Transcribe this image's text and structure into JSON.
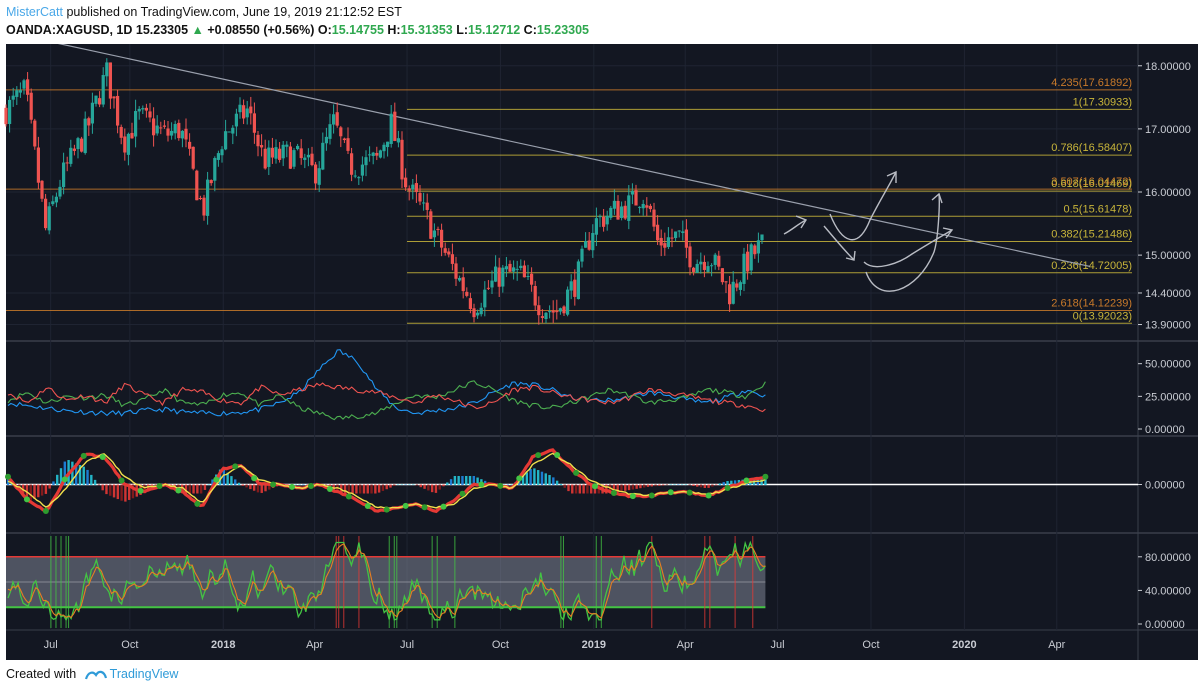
{
  "header": {
    "user": "MisterCatt",
    "published": "published on TradingView.com, June 19, 2019 21:12:52 EST",
    "symbol": "OANDA:XAGUSD, 1D",
    "last": "15.23305",
    "change_arrow": "▲",
    "change": "+0.08550 (+0.56%)",
    "o_label": "O:",
    "o": "15.14755",
    "h_label": "H:",
    "h": "15.31353",
    "l_label": "L:",
    "l": "15.12712",
    "c_label": "C:",
    "c": "15.23305"
  },
  "footer": {
    "created": "Created with",
    "brand": "TradingView",
    "logo_icon": "tradingview-logo-icon"
  },
  "colors": {
    "background": "#131722",
    "candle_up": "#26a69a",
    "candle_down": "#ef5350",
    "fib_line": "#b8a21e",
    "fib_label_olive": "#c8b53a",
    "fib_label_orange": "#c97a2a",
    "trendline": "#9aa0ad",
    "dmi_plus": "#4caf50",
    "dmi_minus": "#ef5350",
    "adx": "#2196f3"
  },
  "chart_data": [
    {
      "type": "candlestick",
      "panel": "price",
      "y_axis_ticks": [
        "18.00000",
        "17.00000",
        "16.00000",
        "15.00000",
        "14.40000",
        "13.90000"
      ],
      "x_axis_ticks": [
        "Jul",
        "Oct",
        "2018",
        "Apr",
        "Jul",
        "Oct",
        "2019",
        "Apr",
        "Jul",
        "Oct",
        "2020",
        "Apr"
      ],
      "fib_levels": [
        {
          "label": "4.235(17.61892)",
          "value": 17.61892,
          "color": "orange"
        },
        {
          "label": "1(17.30933)",
          "value": 17.30933,
          "color": "olive"
        },
        {
          "label": "0.786(16.58407)",
          "value": 16.58407,
          "color": "olive"
        },
        {
          "label": "3.507(16.04472)",
          "value": 16.04472,
          "color": "orange"
        },
        {
          "label": "0.618(16.01469)",
          "value": 16.01469,
          "color": "olive"
        },
        {
          "label": "0.5(15.61478)",
          "value": 15.61478,
          "color": "olive"
        },
        {
          "label": "0.382(15.21486)",
          "value": 15.21486,
          "color": "olive"
        },
        {
          "label": "0.236(14.72005)",
          "value": 14.72005,
          "color": "olive"
        },
        {
          "label": "2.618(14.12239)",
          "value": 14.12239,
          "color": "orange"
        },
        {
          "label": "0(13.92023)",
          "value": 13.92023,
          "color": "olive"
        }
      ],
      "price_path": [
        [
          "2017-06",
          17.3
        ],
        [
          "2017-06-20",
          17.6
        ],
        [
          "2017-07-10",
          15.4
        ],
        [
          "2017-07-25",
          16.2
        ],
        [
          "2017-08-20",
          17.0
        ],
        [
          "2017-09-08",
          17.9
        ],
        [
          "2017-09-25",
          16.8
        ],
        [
          "2017-10-10",
          17.2
        ],
        [
          "2017-11-05",
          16.9
        ],
        [
          "2017-11-20",
          17.0
        ],
        [
          "2017-12-12",
          15.7
        ],
        [
          "2018-01-01",
          16.9
        ],
        [
          "2018-01-25",
          17.3
        ],
        [
          "2018-02-10",
          16.5
        ],
        [
          "2018-03-10",
          16.6
        ],
        [
          "2018-04-01",
          16.3
        ],
        [
          "2018-04-20",
          17.1
        ],
        [
          "2018-05-05",
          16.4
        ],
        [
          "2018-06-01",
          16.5
        ],
        [
          "2018-06-15",
          17.1
        ],
        [
          "2018-07-01",
          16.1
        ],
        [
          "2018-07-20",
          15.6
        ],
        [
          "2018-08-15",
          14.8
        ],
        [
          "2018-09-05",
          14.2
        ],
        [
          "2018-10-01",
          14.7
        ],
        [
          "2018-10-20",
          14.7
        ],
        [
          "2018-11-10",
          14.2
        ],
        [
          "2018-11-25",
          14.1
        ],
        [
          "2018-12-15",
          14.6
        ],
        [
          "2019-01-01",
          15.5
        ],
        [
          "2019-01-20",
          15.7
        ],
        [
          "2019-02-05",
          15.8
        ],
        [
          "2019-02-20",
          16.0
        ],
        [
          "2019-03-05",
          15.2
        ],
        [
          "2019-03-25",
          15.3
        ],
        [
          "2019-04-10",
          14.9
        ],
        [
          "2019-04-25",
          15.0
        ],
        [
          "2019-05-15",
          14.4
        ],
        [
          "2019-06-01",
          14.9
        ],
        [
          "2019-06-19",
          15.23
        ]
      ]
    },
    {
      "type": "line",
      "panel": "dmi",
      "y_axis_ticks": [
        "50.00000",
        "25.00000",
        "0.00000"
      ],
      "series": [
        {
          "color": "adx",
          "values": [
            20,
            18,
            16,
            14,
            13,
            12,
            12,
            14,
            15,
            13,
            12,
            12,
            13,
            15,
            20,
            28,
            45,
            60,
            52,
            30,
            16,
            12,
            14,
            16,
            20,
            28,
            35,
            34,
            30,
            24,
            22,
            22,
            24,
            28,
            26,
            22,
            20,
            24,
            30,
            25
          ]
        },
        {
          "color": "dmi_plus",
          "values": [
            22,
            28,
            20,
            25,
            24,
            26,
            18,
            22,
            30,
            20,
            18,
            26,
            28,
            18,
            26,
            16,
            12,
            8,
            10,
            12,
            20,
            26,
            24,
            30,
            36,
            30,
            22,
            18,
            16,
            20,
            25,
            30,
            26,
            20,
            22,
            24,
            30,
            28,
            25,
            35
          ]
        },
        {
          "color": "dmi_minus",
          "values": [
            28,
            20,
            32,
            22,
            26,
            20,
            34,
            26,
            20,
            30,
            28,
            22,
            20,
            32,
            26,
            30,
            34,
            32,
            30,
            28,
            24,
            20,
            26,
            22,
            16,
            20,
            30,
            32,
            28,
            24,
            22,
            20,
            24,
            30,
            28,
            25,
            22,
            20,
            18,
            14
          ]
        }
      ]
    },
    {
      "type": "line",
      "panel": "macd",
      "y_axis_ticks": [
        "0.00000"
      ],
      "series": [
        {
          "color": "macd",
          "values": [
            0.1,
            -0.2,
            -0.35,
            0.1,
            0.4,
            0.35,
            0.0,
            -0.1,
            0.0,
            -0.1,
            -0.3,
            0.2,
            0.25,
            0.0,
            0.0,
            -0.05,
            0.0,
            -0.1,
            -0.2,
            -0.35,
            -0.3,
            -0.25,
            -0.35,
            -0.2,
            0.0,
            0.0,
            -0.05,
            0.35,
            0.45,
            0.2,
            0.0,
            -0.1,
            -0.15,
            -0.15,
            -0.1,
            -0.1,
            -0.15,
            -0.05,
            0.05,
            0.1
          ]
        },
        {
          "color": "signal",
          "values": [
            0.05,
            -0.1,
            -0.3,
            -0.05,
            0.3,
            0.4,
            0.1,
            -0.05,
            0.0,
            -0.05,
            -0.25,
            0.1,
            0.25,
            0.05,
            0.0,
            -0.05,
            0.0,
            -0.05,
            -0.15,
            -0.3,
            -0.3,
            -0.25,
            -0.3,
            -0.25,
            -0.05,
            0.0,
            -0.05,
            0.25,
            0.4,
            0.25,
            0.05,
            -0.05,
            -0.12,
            -0.14,
            -0.1,
            -0.1,
            -0.13,
            -0.07,
            0.02,
            0.06
          ]
        }
      ]
    },
    {
      "type": "line",
      "panel": "stochastic",
      "y_axis_ticks": [
        "80.00000",
        "40.00000",
        "0.00000"
      ],
      "band": [
        20,
        80
      ]
    }
  ]
}
